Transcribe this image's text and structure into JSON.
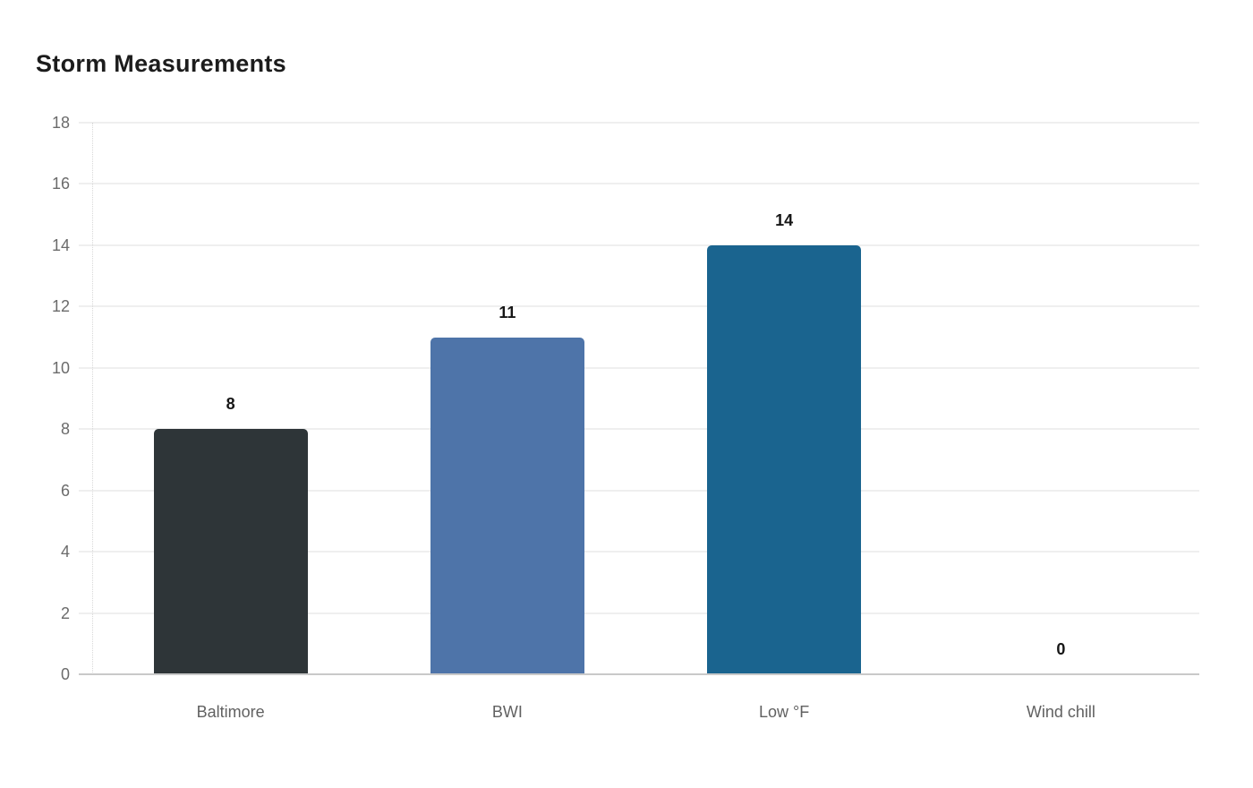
{
  "title": "Storm Measurements",
  "chart_data": {
    "type": "bar",
    "title": "Storm Measurements",
    "categories": [
      "Baltimore",
      "BWI",
      "Low °F",
      "Wind chill"
    ],
    "values": [
      8,
      11,
      14,
      0
    ],
    "bar_colors": [
      "#2e3538",
      "#4e74a9",
      "#1a648f",
      null
    ],
    "xlabel": "",
    "ylabel": "",
    "ylim": [
      0,
      18
    ],
    "yticks": [
      0,
      2,
      4,
      6,
      8,
      10,
      12,
      14,
      16,
      18
    ],
    "grid": "horizontal-only",
    "legend_position": "none",
    "data_labels_shown": true
  },
  "colors": {
    "background": "#ffffff",
    "title_text": "#1c1c1c",
    "axis_tick_text": "#6b6b6b",
    "category_text": "#616161",
    "value_label_text": "#161616",
    "gridline": "#efefef",
    "baseline": "#c9c9c9",
    "bar_baltimore": "#2e3538",
    "bar_bwi": "#4e74a9",
    "bar_low_f": "#1a648f"
  }
}
